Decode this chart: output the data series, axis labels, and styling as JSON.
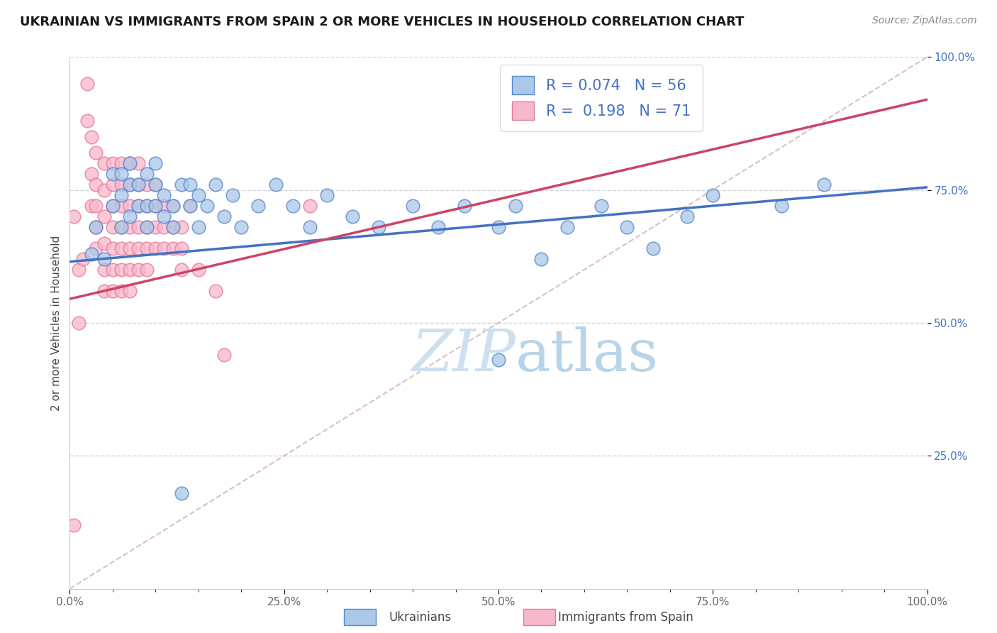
{
  "title": "UKRAINIAN VS IMMIGRANTS FROM SPAIN 2 OR MORE VEHICLES IN HOUSEHOLD CORRELATION CHART",
  "source": "Source: ZipAtlas.com",
  "ylabel": "2 or more Vehicles in Household",
  "xmin": 0.0,
  "xmax": 1.0,
  "ymin": 0.0,
  "ymax": 1.0,
  "x_tick_labels": [
    "0.0%",
    "",
    "",
    "",
    "",
    "25.0%",
    "",
    "",
    "",
    "",
    "50.0%",
    "",
    "",
    "",
    "",
    "75.0%",
    "",
    "",
    "",
    "",
    "100.0%"
  ],
  "x_tick_positions": [
    0.0,
    0.05,
    0.1,
    0.15,
    0.2,
    0.25,
    0.3,
    0.35,
    0.4,
    0.45,
    0.5,
    0.55,
    0.6,
    0.65,
    0.7,
    0.75,
    0.8,
    0.85,
    0.9,
    0.95,
    1.0
  ],
  "y_tick_labels": [
    "25.0%",
    "50.0%",
    "75.0%",
    "100.0%"
  ],
  "y_tick_positions": [
    0.25,
    0.5,
    0.75,
    1.0
  ],
  "blue_R": 0.074,
  "blue_N": 56,
  "pink_R": 0.198,
  "pink_N": 71,
  "blue_color": "#aac8e8",
  "pink_color": "#f8b8cc",
  "blue_edge_color": "#5588cc",
  "pink_edge_color": "#e87898",
  "blue_line_color": "#4472c4",
  "pink_line_color": "#cc4466",
  "watermark_color": "#cce0f0",
  "blue_scatter_x": [
    0.025,
    0.03,
    0.04,
    0.05,
    0.05,
    0.06,
    0.06,
    0.06,
    0.07,
    0.07,
    0.07,
    0.08,
    0.08,
    0.09,
    0.09,
    0.09,
    0.1,
    0.1,
    0.1,
    0.11,
    0.11,
    0.12,
    0.12,
    0.13,
    0.14,
    0.14,
    0.15,
    0.15,
    0.16,
    0.17,
    0.18,
    0.19,
    0.2,
    0.22,
    0.24,
    0.26,
    0.28,
    0.3,
    0.33,
    0.36,
    0.4,
    0.43,
    0.46,
    0.5,
    0.52,
    0.55,
    0.58,
    0.62,
    0.65,
    0.68,
    0.72,
    0.75,
    0.83,
    0.88,
    0.13,
    0.5
  ],
  "blue_scatter_y": [
    0.63,
    0.68,
    0.62,
    0.72,
    0.78,
    0.68,
    0.74,
    0.78,
    0.7,
    0.76,
    0.8,
    0.72,
    0.76,
    0.68,
    0.72,
    0.78,
    0.72,
    0.76,
    0.8,
    0.7,
    0.74,
    0.68,
    0.72,
    0.76,
    0.72,
    0.76,
    0.68,
    0.74,
    0.72,
    0.76,
    0.7,
    0.74,
    0.68,
    0.72,
    0.76,
    0.72,
    0.68,
    0.74,
    0.7,
    0.68,
    0.72,
    0.68,
    0.72,
    0.68,
    0.72,
    0.62,
    0.68,
    0.72,
    0.68,
    0.64,
    0.7,
    0.74,
    0.72,
    0.76,
    0.18,
    0.43
  ],
  "pink_scatter_x": [
    0.005,
    0.01,
    0.01,
    0.015,
    0.02,
    0.02,
    0.025,
    0.025,
    0.025,
    0.03,
    0.03,
    0.03,
    0.03,
    0.03,
    0.04,
    0.04,
    0.04,
    0.04,
    0.04,
    0.04,
    0.05,
    0.05,
    0.05,
    0.05,
    0.05,
    0.05,
    0.05,
    0.06,
    0.06,
    0.06,
    0.06,
    0.06,
    0.06,
    0.06,
    0.07,
    0.07,
    0.07,
    0.07,
    0.07,
    0.07,
    0.07,
    0.08,
    0.08,
    0.08,
    0.08,
    0.08,
    0.08,
    0.09,
    0.09,
    0.09,
    0.09,
    0.09,
    0.1,
    0.1,
    0.1,
    0.1,
    0.11,
    0.11,
    0.11,
    0.12,
    0.12,
    0.12,
    0.13,
    0.13,
    0.13,
    0.14,
    0.15,
    0.17,
    0.18,
    0.28,
    0.005
  ],
  "pink_scatter_y": [
    0.7,
    0.6,
    0.5,
    0.62,
    0.95,
    0.88,
    0.85,
    0.78,
    0.72,
    0.82,
    0.76,
    0.72,
    0.68,
    0.64,
    0.8,
    0.75,
    0.7,
    0.65,
    0.6,
    0.56,
    0.8,
    0.76,
    0.72,
    0.68,
    0.64,
    0.6,
    0.56,
    0.8,
    0.76,
    0.72,
    0.68,
    0.64,
    0.6,
    0.56,
    0.8,
    0.76,
    0.72,
    0.68,
    0.64,
    0.6,
    0.56,
    0.8,
    0.76,
    0.72,
    0.68,
    0.64,
    0.6,
    0.76,
    0.72,
    0.68,
    0.64,
    0.6,
    0.76,
    0.72,
    0.68,
    0.64,
    0.72,
    0.68,
    0.64,
    0.72,
    0.68,
    0.64,
    0.68,
    0.64,
    0.6,
    0.72,
    0.6,
    0.56,
    0.44,
    0.72,
    0.12
  ]
}
